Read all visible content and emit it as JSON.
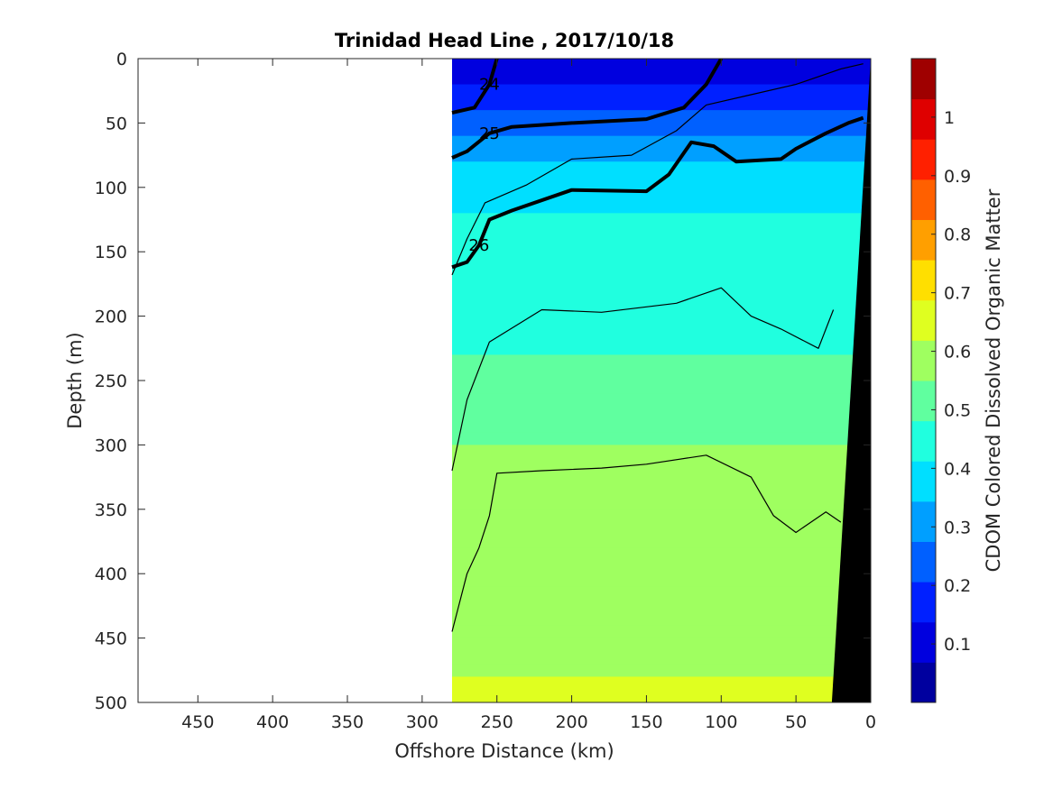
{
  "chart_data": {
    "type": "heatmap",
    "title": "Trinidad Head Line , 2017/10/18",
    "xlabel": "Offshore Distance (km)",
    "ylabel": "Depth (m)",
    "colorbar_label": "CDOM Colored Dissolved Organic Matter",
    "colormap": "jet",
    "xlim": [
      490,
      0
    ],
    "ylim": [
      0,
      500
    ],
    "y_reversed": true,
    "x_reversed": true,
    "grid": false,
    "x_ticks": [
      450,
      400,
      350,
      300,
      250,
      200,
      150,
      100,
      50,
      0
    ],
    "y_ticks": [
      0,
      50,
      100,
      150,
      200,
      250,
      300,
      350,
      400,
      450,
      500
    ],
    "colorbar_range": [
      0,
      1.1
    ],
    "colorbar_ticks": [
      0.1,
      0.2,
      0.3,
      0.4,
      0.5,
      0.6,
      0.7,
      0.8,
      0.9,
      1
    ],
    "colorbar_tick_labels": [
      "0.1",
      "0.2",
      "0.3",
      "0.4",
      "0.5",
      "0.6",
      "0.7",
      "0.8",
      "0.9",
      "1"
    ],
    "data_extent_x": [
      280,
      0
    ],
    "bathymetry_color": "#000000",
    "bathymetry": [
      {
        "x": 0,
        "depth": 0
      },
      {
        "x": 0,
        "depth": 500
      },
      {
        "x": 26,
        "depth": 500
      }
    ],
    "cdom_depth_profile": [
      {
        "depth": 0,
        "cdom": 0.12
      },
      {
        "depth": 25,
        "cdom": 0.14
      },
      {
        "depth": 60,
        "cdom": 0.28
      },
      {
        "depth": 100,
        "cdom": 0.4
      },
      {
        "depth": 150,
        "cdom": 0.43
      },
      {
        "depth": 200,
        "cdom": 0.45
      },
      {
        "depth": 260,
        "cdom": 0.52
      },
      {
        "depth": 320,
        "cdom": 0.56
      },
      {
        "depth": 400,
        "cdom": 0.59
      },
      {
        "depth": 460,
        "cdom": 0.61
      },
      {
        "depth": 500,
        "cdom": 0.63
      }
    ],
    "density_contours": [
      {
        "label": "24",
        "bold": true,
        "points": [
          [
            280,
            42
          ],
          [
            265,
            38
          ],
          [
            255,
            20
          ],
          [
            250,
            0
          ]
        ]
      },
      {
        "label": "25",
        "bold": true,
        "points": [
          [
            280,
            77
          ],
          [
            270,
            72
          ],
          [
            255,
            58
          ],
          [
            240,
            53
          ],
          [
            200,
            50
          ],
          [
            150,
            47
          ],
          [
            125,
            38
          ],
          [
            110,
            20
          ],
          [
            100,
            0
          ]
        ]
      },
      {
        "label": "26",
        "bold": true,
        "points": [
          [
            280,
            162
          ],
          [
            270,
            158
          ],
          [
            262,
            145
          ],
          [
            255,
            125
          ],
          [
            240,
            118
          ],
          [
            200,
            102
          ],
          [
            150,
            103
          ],
          [
            135,
            90
          ],
          [
            120,
            65
          ],
          [
            105,
            68
          ],
          [
            90,
            80
          ],
          [
            60,
            78
          ],
          [
            50,
            70
          ],
          [
            30,
            58
          ],
          [
            15,
            50
          ],
          [
            5,
            46
          ]
        ]
      },
      {
        "label": "",
        "bold": false,
        "points": [
          [
            280,
            168
          ],
          [
            270,
            140
          ],
          [
            258,
            112
          ],
          [
            230,
            98
          ],
          [
            200,
            78
          ],
          [
            160,
            75
          ],
          [
            130,
            56
          ],
          [
            110,
            36
          ],
          [
            80,
            28
          ],
          [
            50,
            20
          ],
          [
            20,
            8
          ],
          [
            5,
            4
          ]
        ]
      },
      {
        "label": "",
        "bold": false,
        "points": [
          [
            280,
            320
          ],
          [
            270,
            265
          ],
          [
            255,
            220
          ],
          [
            220,
            195
          ],
          [
            180,
            197
          ],
          [
            130,
            190
          ],
          [
            100,
            178
          ],
          [
            80,
            200
          ],
          [
            60,
            210
          ],
          [
            35,
            225
          ],
          [
            25,
            195
          ]
        ]
      },
      {
        "label": "",
        "bold": false,
        "points": [
          [
            280,
            445
          ],
          [
            270,
            400
          ],
          [
            262,
            380
          ],
          [
            255,
            355
          ],
          [
            250,
            322
          ],
          [
            220,
            320
          ],
          [
            180,
            318
          ],
          [
            150,
            315
          ],
          [
            110,
            308
          ],
          [
            80,
            325
          ],
          [
            65,
            355
          ],
          [
            50,
            368
          ],
          [
            30,
            352
          ],
          [
            20,
            360
          ]
        ]
      }
    ]
  }
}
